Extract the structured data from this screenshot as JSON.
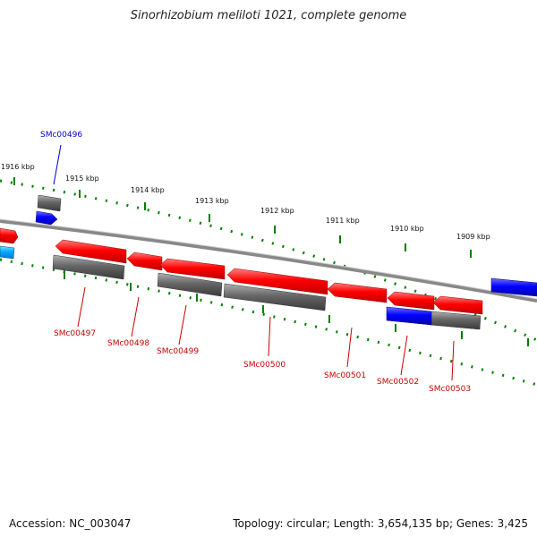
{
  "title": "Sinorhizobium meliloti 1021, complete genome",
  "accession": "Accession: NC_003047",
  "summary": "Topology: circular; Length: 3,654,135 bp; Genes: 3,425",
  "colors": {
    "forward": "#ff0000",
    "reverse_gray": "#666666",
    "blue": "#0000ff",
    "cyan": "#00aaff",
    "ticks": "#008000",
    "backbone": "#888888"
  },
  "scale_labels": [
    "1916 kbp",
    "1915 kbp",
    "1914 kbp",
    "1913 kbp",
    "1912 kbp",
    "1911 kbp",
    "1910 kbp",
    "1909 kbp"
  ],
  "gene_labels": [
    {
      "text": "SMc00496",
      "color": "#0000cc"
    },
    {
      "text": "SMc00497",
      "color": "#cc0000"
    },
    {
      "text": "SMc00498",
      "color": "#cc0000"
    },
    {
      "text": "SMc00499",
      "color": "#cc0000"
    },
    {
      "text": "SMc00500",
      "color": "#cc0000"
    },
    {
      "text": "SMc00501",
      "color": "#cc0000"
    },
    {
      "text": "SMc00502",
      "color": "#cc0000"
    },
    {
      "text": "SMc00503",
      "color": "#cc0000"
    }
  ]
}
